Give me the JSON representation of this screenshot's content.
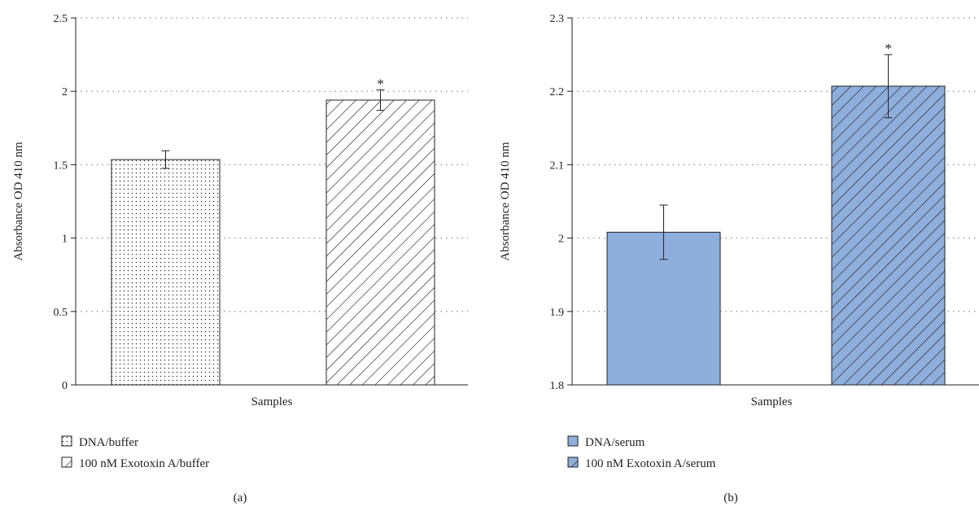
{
  "chart_data": [
    {
      "type": "bar",
      "panel_label": "(a)",
      "categories": [
        "DNA/buffer",
        "100 nM Exotoxin A/buffer"
      ],
      "values": [
        1.535,
        1.94
      ],
      "errors": [
        0.06,
        0.07
      ],
      "significance": [
        "",
        "*"
      ],
      "patterns": [
        "dots",
        "hatch"
      ],
      "fill_color": "#ffffff",
      "xlabel": "Samples",
      "ylabel": "Absorbance OD 410 nm",
      "ylim": [
        0,
        2.5
      ],
      "yticks": [
        "0",
        "0.5",
        "1",
        "1.5",
        "2",
        "2.5"
      ],
      "ytick_values": [
        0,
        0.5,
        1,
        1.5,
        2,
        2.5
      ],
      "grid": true,
      "legend": [
        {
          "label": "DNA/buffer",
          "pattern": "dots"
        },
        {
          "label": "100 nM Exotoxin A/buffer",
          "pattern": "hatch"
        }
      ],
      "legend_position": "bottom-left"
    },
    {
      "type": "bar",
      "panel_label": "(b)",
      "categories": [
        "DNA/serum",
        "100 nM Exotoxin A/serum"
      ],
      "values": [
        2.008,
        2.207
      ],
      "errors": [
        0.037,
        0.043
      ],
      "significance": [
        "",
        "*"
      ],
      "patterns": [
        "solid",
        "hatch"
      ],
      "fill_color": "#8eafdc",
      "xlabel": "Samples",
      "ylabel": "Absorbance OD 410 nm",
      "ylim": [
        1.8,
        2.3
      ],
      "yticks": [
        "1.8",
        "1.9",
        "2",
        "2.1",
        "2.2",
        "2.3"
      ],
      "ytick_values": [
        1.8,
        1.9,
        2.0,
        2.1,
        2.2,
        2.3
      ],
      "grid": true,
      "legend": [
        {
          "label": "DNA/serum",
          "pattern": "solid"
        },
        {
          "label": "100 nM Exotoxin A/serum",
          "pattern": "hatch"
        }
      ],
      "legend_position": "bottom-left"
    }
  ]
}
